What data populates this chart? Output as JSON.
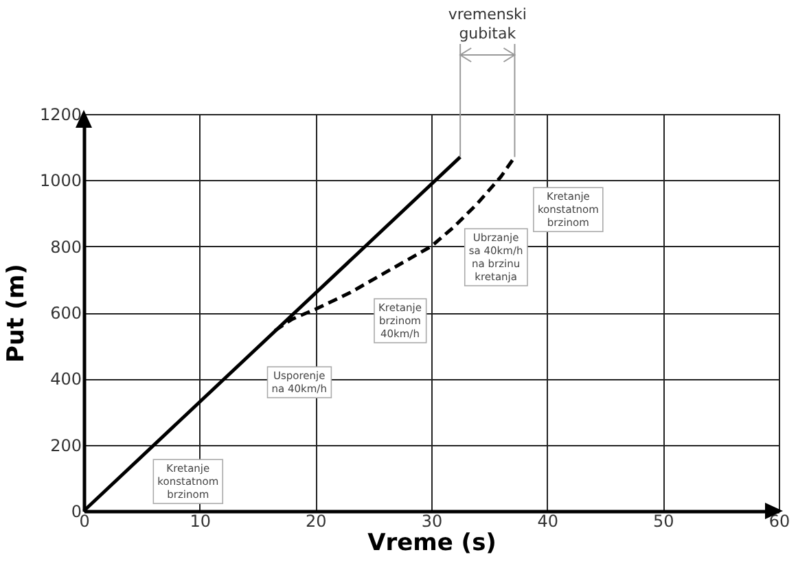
{
  "chart_data": {
    "type": "line",
    "xlabel": "Vreme (s)",
    "ylabel": "Put (m)",
    "xlim": [
      0,
      60
    ],
    "xticks": [
      0,
      10,
      20,
      30,
      40,
      50,
      60
    ],
    "ylim": [
      0,
      1200
    ],
    "yticks": [
      0,
      200,
      400,
      600,
      800,
      1000,
      1200
    ],
    "grid": true,
    "series": [
      {
        "color": "#000000",
        "line_style": "solid",
        "x": [
          0,
          32.5
        ],
        "values": [
          0,
          1070
        ]
      },
      {
        "color": "#000000",
        "line_style": "dashed",
        "x": [
          16.5,
          18,
          20,
          23,
          26,
          30,
          32,
          34,
          36,
          37.2
        ],
        "values": [
          545,
          580,
          610,
          660,
          720,
          800,
          860,
          930,
          1010,
          1070
        ]
      }
    ],
    "annotations": [
      "Kretanje\nkonstatnom\nbrzinom",
      "Usporenje\nna 40km/h",
      "Kretanje\nbrzinom\n40km/h",
      "Ubrzanje\nsa 40km/h\nna brzinu\nkretanja",
      "Kretanje\nkonstatnom\nbrzinom",
      {
        "text": "vremenski\ngubitak",
        "x": 32.5,
        "y": 1070
      }
    ]
  }
}
